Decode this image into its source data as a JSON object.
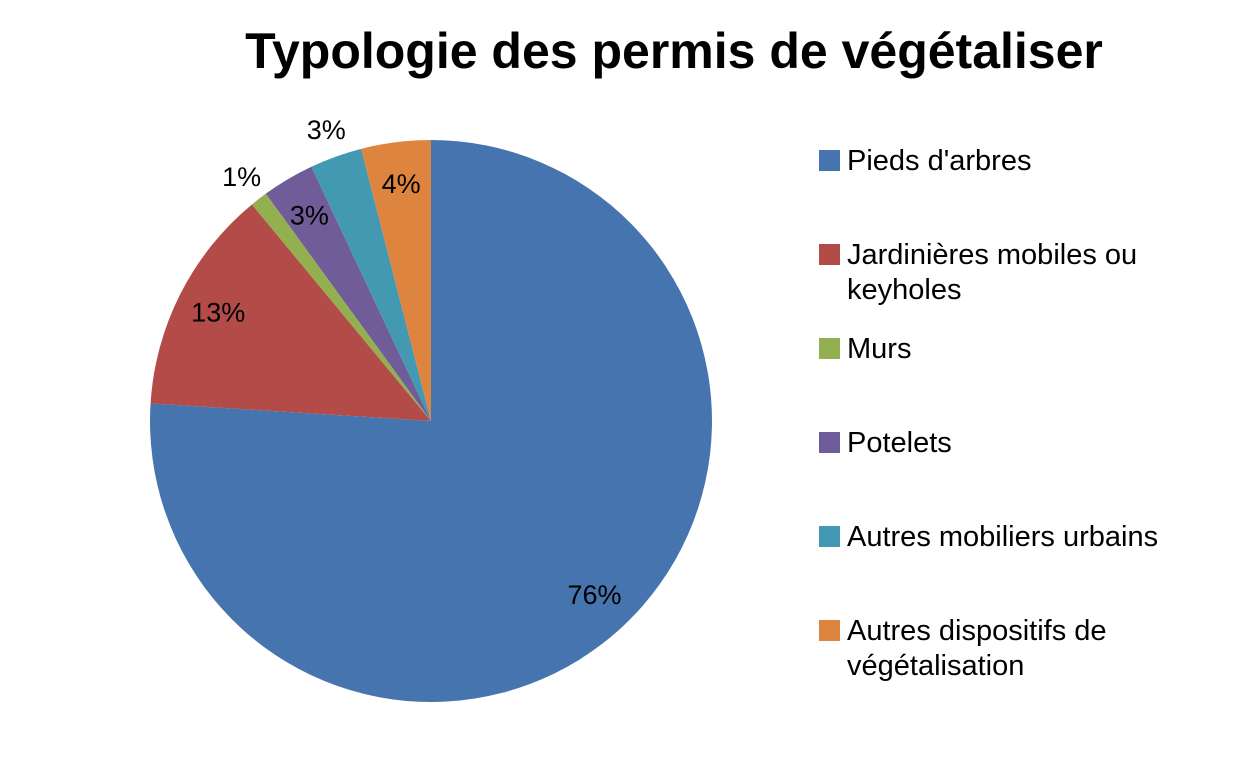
{
  "title": "Typologie des permis de végétaliser",
  "chart_data": {
    "type": "pie",
    "title": "Typologie des permis de végétaliser",
    "start_angle_deg": 0,
    "direction": "clockwise",
    "legend_position": "right",
    "total": 100,
    "slices": [
      {
        "label": "Pieds d'arbres",
        "value": 76,
        "pct_label": "76%",
        "color": "#4674AE",
        "label_placement": "inside"
      },
      {
        "label": "Jardinières mobiles ou keyholes",
        "value": 13,
        "pct_label": "13%",
        "color": "#B34B48",
        "label_placement": "inside"
      },
      {
        "label": "Murs",
        "value": 1,
        "pct_label": "1%",
        "color": "#93B050",
        "label_placement": "outside"
      },
      {
        "label": "Potelets",
        "value": 3,
        "pct_label": "3%",
        "color": "#705C98",
        "label_placement": "inside"
      },
      {
        "label": "Autres mobiliers urbains",
        "value": 3,
        "pct_label": "3%",
        "color": "#4299B1",
        "label_placement": "outside"
      },
      {
        "label": "Autres dispositifs de végétalisation",
        "value": 4,
        "pct_label": "4%",
        "color": "#DD853F",
        "label_placement": "inside"
      }
    ]
  }
}
